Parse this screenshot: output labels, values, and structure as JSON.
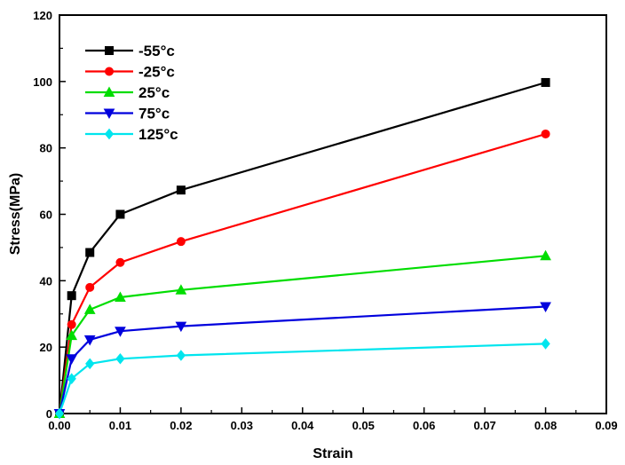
{
  "chart_data": {
    "type": "line",
    "title": "",
    "xlabel": "Strain",
    "ylabel": "Stress(MPa)",
    "xlim": [
      0.0,
      0.09
    ],
    "ylim": [
      0,
      120
    ],
    "xticks": [
      "0.00",
      "0.01",
      "0.02",
      "0.03",
      "0.04",
      "0.05",
      "0.06",
      "0.07",
      "0.08",
      "0.09"
    ],
    "yticks": [
      "0",
      "20",
      "40",
      "60",
      "80",
      "100",
      "120"
    ],
    "grid": false,
    "legend_position": "top-left",
    "series": [
      {
        "name": "-55°c",
        "color": "#000000",
        "marker": "square",
        "x": [
          0,
          0.002,
          0.005,
          0.01,
          0.02,
          0.08
        ],
        "y": [
          0,
          35.5,
          48.5,
          60,
          67.3,
          99.7
        ]
      },
      {
        "name": "-25°c",
        "color": "#ff0000",
        "marker": "circle",
        "x": [
          0,
          0.002,
          0.005,
          0.01,
          0.02,
          0.08
        ],
        "y": [
          0,
          26.8,
          38,
          45.5,
          51.8,
          84.2
        ]
      },
      {
        "name": "25°c",
        "color": "#00dd00",
        "marker": "triangle-up",
        "x": [
          0,
          0.002,
          0.005,
          0.01,
          0.02,
          0.08
        ],
        "y": [
          0,
          23.5,
          31.3,
          35,
          37.2,
          47.5
        ]
      },
      {
        "name": "75°c",
        "color": "#0000dd",
        "marker": "triangle-down",
        "x": [
          0,
          0.002,
          0.005,
          0.01,
          0.02,
          0.08
        ],
        "y": [
          0,
          16.5,
          22.2,
          24.8,
          26.3,
          32.2
        ]
      },
      {
        "name": "125°c",
        "color": "#00e5ee",
        "marker": "diamond",
        "x": [
          0,
          0.002,
          0.005,
          0.01,
          0.02,
          0.08
        ],
        "y": [
          0,
          10.5,
          15,
          16.5,
          17.5,
          21
        ]
      }
    ]
  }
}
